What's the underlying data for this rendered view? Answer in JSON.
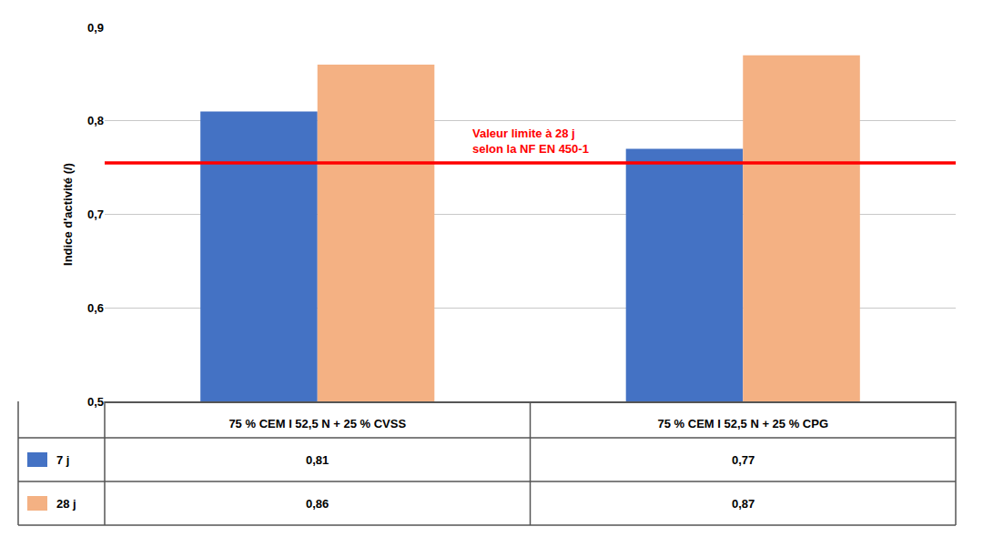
{
  "chart_data": {
    "type": "bar",
    "categories": [
      "75 % CEM I 52,5 N + 25 % CVSS",
      "75 % CEM I 52,5 N + 25 % CPG"
    ],
    "series": [
      {
        "name": "7 j",
        "color": "#4472C4",
        "values": [
          0.81,
          0.77
        ],
        "value_labels": [
          "0,81",
          "0,77"
        ]
      },
      {
        "name": "28 j",
        "color": "#F4B183",
        "values": [
          0.86,
          0.87
        ],
        "value_labels": [
          "0,86",
          "0,87"
        ]
      }
    ],
    "ylabel": "Indice d'activité (/)",
    "ylim": [
      0.5,
      0.9
    ],
    "yticks": [
      {
        "value": 0.5,
        "label": "0,5"
      },
      {
        "value": 0.6,
        "label": "0,6"
      },
      {
        "value": 0.7,
        "label": "0,7"
      },
      {
        "value": 0.8,
        "label": "0,8"
      },
      {
        "value": 0.9,
        "label": "0,9"
      }
    ],
    "grid": true,
    "reference_line": {
      "y": 0.755,
      "color": "#FF0000"
    },
    "annotation": {
      "text": "Valeur limite à 28 j\nselon la NF EN 450-1",
      "color": "#FF0000"
    }
  }
}
